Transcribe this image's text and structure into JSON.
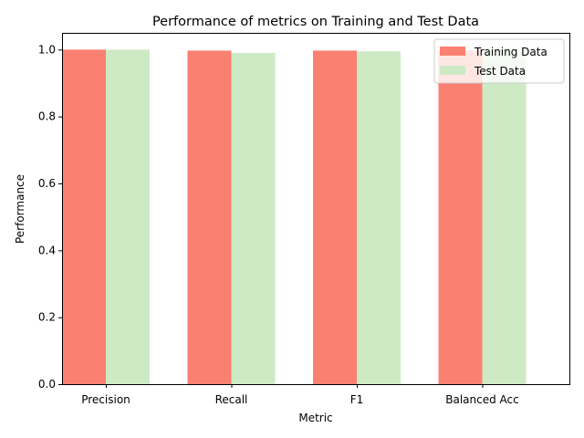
{
  "chart_data": {
    "type": "bar",
    "title": "Performance of metrics on Training and Test Data",
    "xlabel": "Metric",
    "ylabel": "Performance",
    "categories": [
      "Precision",
      "Recall",
      "F1",
      "Balanced Acc"
    ],
    "series": [
      {
        "name": "Training Data",
        "color": "#fa8072",
        "values": [
          1.0,
          0.997,
          0.997,
          0.997
        ]
      },
      {
        "name": "Test Data",
        "color": "#cdeac5",
        "values": [
          1.0,
          0.99,
          0.995,
          1.0
        ]
      }
    ],
    "ylim": [
      0,
      1.05
    ],
    "yticks": [
      "0.0",
      "0.2",
      "0.4",
      "0.6",
      "0.8",
      "1.0"
    ],
    "grid": false,
    "legend_position": "top-right"
  }
}
